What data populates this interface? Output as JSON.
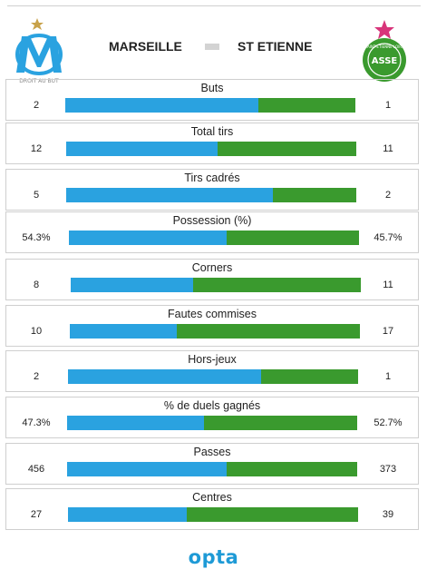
{
  "header": {
    "home_team": "MARSEILLE",
    "away_team": "ST ETIENNE",
    "home_logo_text": "DROIT AU BUT",
    "away_logo_text": "SAINT-ETIENNE LOIRE",
    "away_logo_letters": "ASSE"
  },
  "colors": {
    "home": "#2aa2e0",
    "away": "#3a9a2e"
  },
  "stats": [
    {
      "label": "Buts",
      "home": "2",
      "away": "1",
      "home_share": 0.667
    },
    {
      "label": "Total tirs",
      "home": "12",
      "away": "11",
      "home_share": 0.522
    },
    {
      "label": "Tirs cadrés",
      "home": "5",
      "away": "2",
      "home_share": 0.714
    },
    {
      "label": "Possession (%)",
      "home": "54.3%",
      "away": "45.7%",
      "home_share": 0.543
    },
    {
      "label": "Corners",
      "home": "8",
      "away": "11",
      "home_share": 0.421
    },
    {
      "label": "Fautes commises",
      "home": "10",
      "away": "17",
      "home_share": 0.37
    },
    {
      "label": "Hors-jeux",
      "home": "2",
      "away": "1",
      "home_share": 0.667
    },
    {
      "label": "% de duels gagnés",
      "home": "47.3%",
      "away": "52.7%",
      "home_share": 0.473
    },
    {
      "label": "Passes",
      "home": "456",
      "away": "373",
      "home_share": 0.55
    },
    {
      "label": "Centres",
      "home": "27",
      "away": "39",
      "home_share": 0.409
    }
  ],
  "footer": {
    "brand": "opta"
  }
}
